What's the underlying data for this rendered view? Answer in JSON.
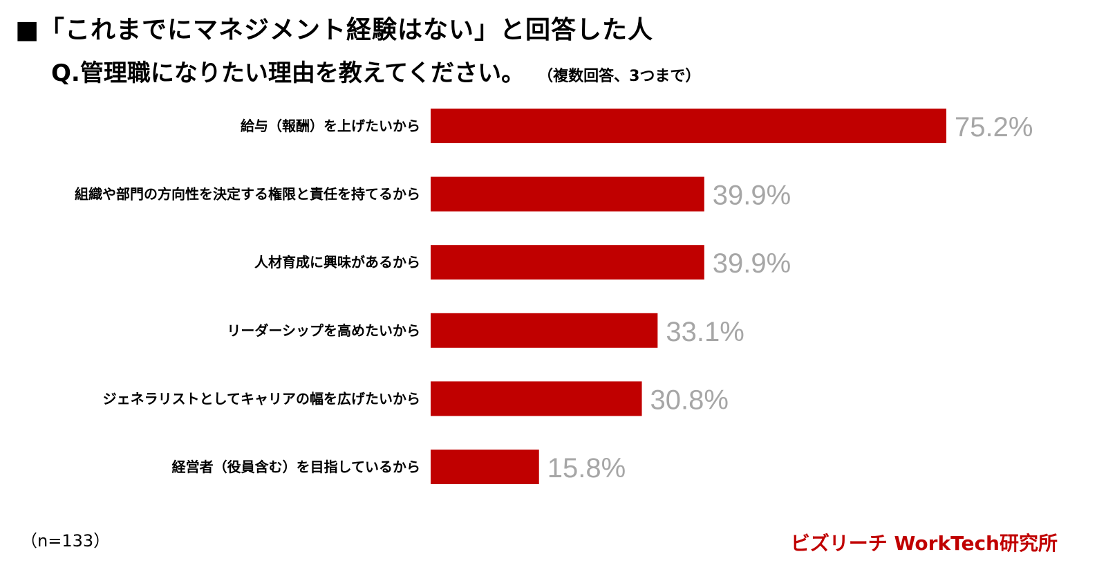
{
  "header": {
    "title": "■「これまでにマネジメント経験はない」と回答した人",
    "question": "Q.管理職になりたい理由を教えてください。",
    "question_note": "（複数回答、3つまで）"
  },
  "footer": {
    "sample_size": "（n=133）",
    "brand": "ビズリーチ WorkTech研究所"
  },
  "colors": {
    "bar": "#c00000",
    "value_label": "#a6a6a6",
    "brand": "#c00000"
  },
  "chart_data": {
    "type": "bar",
    "orientation": "horizontal",
    "categories": [
      "給与（報酬）を上げたいから",
      "組織や部門の方向性を決定する権限と責任を持てるから",
      "人材育成に興味があるから",
      "リーダーシップを高めたいから",
      "ジェネラリストとしてキャリアの幅を広げたいから",
      "経営者（役員含む）を目指しているから"
    ],
    "values": [
      75.2,
      39.9,
      39.9,
      33.1,
      30.8,
      15.8
    ],
    "value_labels": [
      "75.2%",
      "39.9%",
      "39.9%",
      "33.1%",
      "30.8%",
      "15.8%"
    ],
    "unit": "%",
    "xlim": [
      0,
      100
    ],
    "grid": false,
    "legend": "none"
  }
}
